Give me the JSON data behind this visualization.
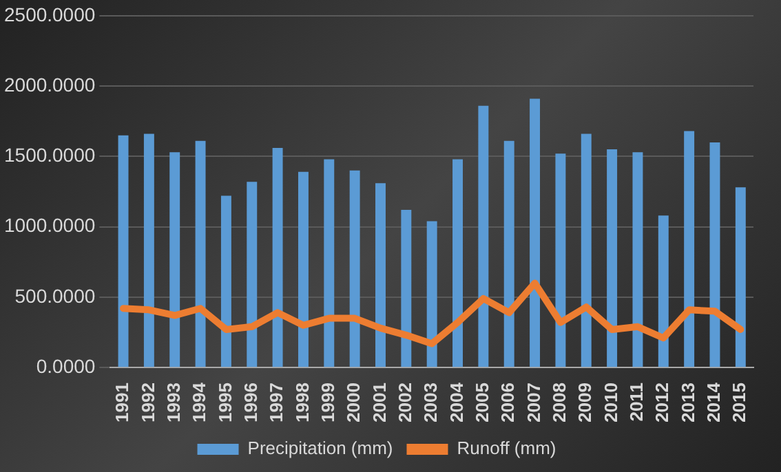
{
  "chart_data": {
    "type": "bar",
    "categories": [
      "1991",
      "1992",
      "1993",
      "1994",
      "1995",
      "1996",
      "1997",
      "1998",
      "1999",
      "2000",
      "2001",
      "2002",
      "2003",
      "2004",
      "2005",
      "2006",
      "2007",
      "2008",
      "2009",
      "2010",
      "2011",
      "2012",
      "2013",
      "2014",
      "2015"
    ],
    "series": [
      {
        "name": "Precipitation (mm)",
        "color": "#5b9bd5",
        "values": [
          1650,
          1660,
          1530,
          1610,
          1220,
          1320,
          1560,
          1390,
          1480,
          1400,
          1310,
          1120,
          1040,
          1480,
          1860,
          1610,
          1910,
          1520,
          1660,
          1550,
          1530,
          1080,
          1680,
          1600,
          1280
        ]
      },
      {
        "name": "Runoff (mm)",
        "type": "line",
        "color": "#ed7d31",
        "values": [
          420,
          410,
          370,
          420,
          270,
          290,
          390,
          300,
          350,
          350,
          280,
          230,
          170,
          320,
          490,
          390,
          600,
          320,
          430,
          270,
          290,
          210,
          410,
          400,
          270
        ]
      }
    ],
    "ylim": [
      0,
      2500
    ],
    "yticks": [
      {
        "value": 0,
        "label": "0.0000"
      },
      {
        "value": 500,
        "label": "500.0000"
      },
      {
        "value": 1000,
        "label": "1000.0000"
      },
      {
        "value": 1500,
        "label": "1500.0000"
      },
      {
        "value": 2000,
        "label": "2000.0000"
      },
      {
        "value": 2500,
        "label": "2500.0000"
      }
    ],
    "grid": "y",
    "legend": "bottom",
    "marker": "none"
  }
}
